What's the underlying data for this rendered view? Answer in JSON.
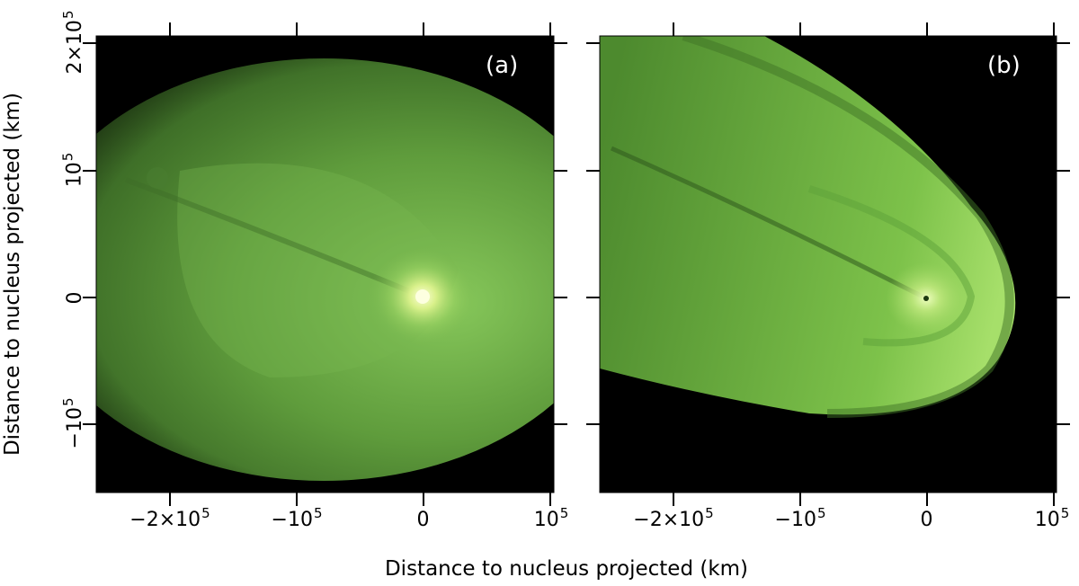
{
  "figure": {
    "x_axis_title": "Distance to nucleus projected (km)",
    "y_axis_title": "Distance to nucleus projected (km)",
    "x_ticks": [
      {
        "base": "−2×10",
        "exp": "5"
      },
      {
        "base": "−10",
        "exp": "5"
      },
      {
        "base": "0",
        "exp": ""
      },
      {
        "base": "10",
        "exp": "5"
      }
    ],
    "y_ticks": [
      {
        "base": "2×10",
        "exp": "5"
      },
      {
        "base": "10",
        "exp": "5"
      },
      {
        "base": "0",
        "exp": ""
      },
      {
        "base": "−10",
        "exp": "5"
      }
    ]
  },
  "panels": [
    {
      "label": "(a)",
      "description_colors": {
        "core": "#fbffc8",
        "coma": "#6fae45",
        "background": "#000000"
      }
    },
    {
      "label": "(b)",
      "description_colors": {
        "core": "#e8ffb0",
        "coma": "#77c044",
        "background": "#000000"
      }
    }
  ]
}
